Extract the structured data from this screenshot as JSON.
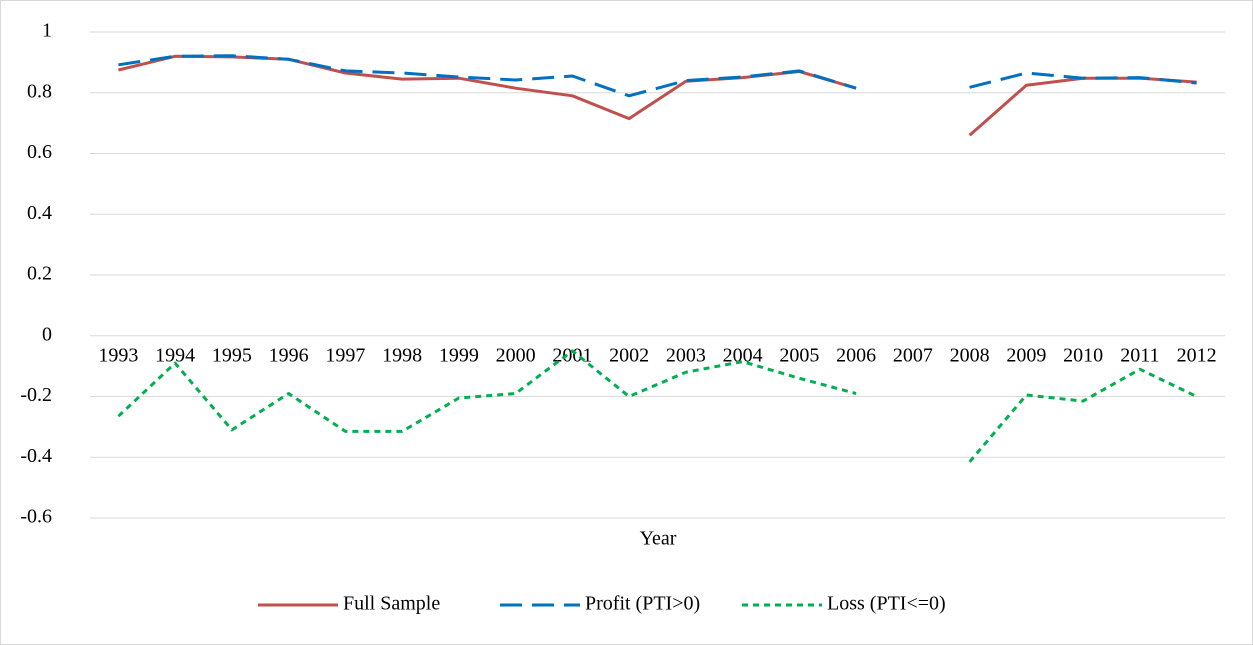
{
  "chart_data": {
    "type": "line",
    "x_label": "Year",
    "categories": [
      "1993",
      "1994",
      "1995",
      "1996",
      "1997",
      "1998",
      "1999",
      "2000",
      "2001",
      "2002",
      "2003",
      "2004",
      "2005",
      "2006",
      "2007",
      "2008",
      "2009",
      "2010",
      "2011",
      "2012"
    ],
    "series": [
      {
        "name": "Full Sample",
        "color": "#c0504d",
        "dash": "solid",
        "values": [
          0.875,
          0.92,
          0.918,
          0.91,
          0.865,
          0.845,
          0.848,
          0.815,
          0.79,
          0.715,
          0.838,
          0.85,
          0.87,
          0.815,
          null,
          0.66,
          0.825,
          0.848,
          0.848,
          0.835
        ]
      },
      {
        "name": "Profit (PTI>0)",
        "color": "#0070c0",
        "dash": "dash",
        "values": [
          0.892,
          0.92,
          0.922,
          0.91,
          0.872,
          0.865,
          0.852,
          0.842,
          0.855,
          0.79,
          0.84,
          0.852,
          0.872,
          0.815,
          null,
          0.818,
          0.865,
          0.848,
          0.85,
          0.832
        ]
      },
      {
        "name": "Loss (PTI<=0)",
        "color": "#00b050",
        "dash": "dot",
        "values": [
          -0.265,
          -0.09,
          -0.31,
          -0.19,
          -0.315,
          -0.315,
          -0.205,
          -0.19,
          -0.05,
          -0.2,
          -0.12,
          -0.085,
          -0.14,
          -0.19,
          null,
          -0.415,
          -0.195,
          -0.215,
          -0.11,
          -0.2
        ]
      }
    ],
    "ylim": [
      -0.6,
      1
    ],
    "yticks": [
      -0.6,
      -0.4,
      -0.2,
      0,
      0.2,
      0.4,
      0.6,
      0.8,
      1
    ],
    "grid": true,
    "legend": "bottom"
  }
}
